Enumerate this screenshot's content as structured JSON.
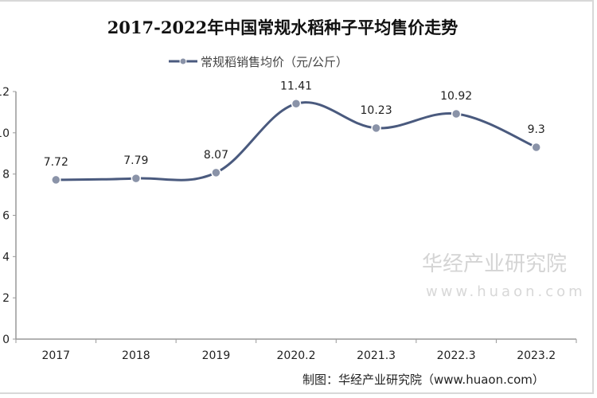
{
  "chart_data": {
    "type": "line",
    "title": "2017-2022年中国常规水稻种子平均售价走势",
    "categories": [
      "2017",
      "2018",
      "2019",
      "2020.2",
      "2021.3",
      "2022.3",
      "2023.2"
    ],
    "series": [
      {
        "name": "常规稻销售均价（元/公斤）",
        "values": [
          7.72,
          7.79,
          8.07,
          11.41,
          10.23,
          10.92,
          9.3
        ],
        "labels": [
          "7.72",
          "7.79",
          "8.07",
          "11.41",
          "10.23",
          "10.92",
          "9.3"
        ],
        "color": "#4a5a7e"
      }
    ],
    "ylim": [
      0,
      12
    ],
    "yticks": [
      "0",
      "2",
      "4",
      "6",
      "8",
      "10",
      "12"
    ],
    "smooth": true,
    "grid": false,
    "legend": "top"
  },
  "credit": "制图：华经产业研究院（www.huaon.com）",
  "watermark": {
    "name": "华经产业研究院",
    "url": "www.huaon.com"
  }
}
